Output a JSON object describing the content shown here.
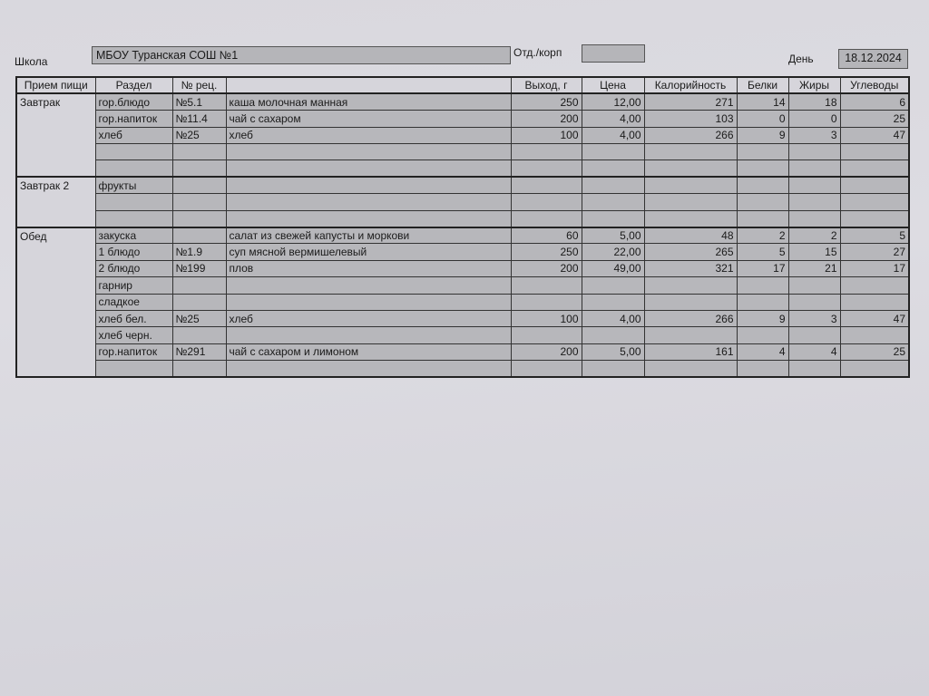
{
  "header": {
    "school_label": "Школа",
    "school_value": "МБОУ Туранская СОШ №1",
    "dept_label": "Отд./корп",
    "dept_value": "",
    "day_label": "День",
    "day_value": "18.12.2024"
  },
  "table": {
    "columns": [
      "Прием пищи",
      "Раздел",
      "№ рец.",
      "",
      "Выход, г",
      "Цена",
      "Калорийность",
      "Белки",
      "Жиры",
      "Углеводы"
    ],
    "meals": [
      {
        "name": "Завтрак",
        "rows": [
          [
            "гор.блюдо",
            "№5.1",
            "каша молочная манная",
            "250",
            "12,00",
            "271",
            "14",
            "18",
            "6"
          ],
          [
            "гор.напиток",
            "№11.4",
            "чай с сахаром",
            "200",
            "4,00",
            "103",
            "0",
            "0",
            "25"
          ],
          [
            "хлеб",
            "№25",
            "хлеб",
            "100",
            "4,00",
            "266",
            "9",
            "3",
            "47"
          ],
          [
            "",
            "",
            "",
            "",
            "",
            "",
            "",
            "",
            ""
          ],
          [
            "",
            "",
            "",
            "",
            "",
            "",
            "",
            "",
            ""
          ]
        ]
      },
      {
        "name": "Завтрак 2",
        "rows": [
          [
            "фрукты",
            "",
            "",
            "",
            "",
            "",
            "",
            "",
            ""
          ],
          [
            "",
            "",
            "",
            "",
            "",
            "",
            "",
            "",
            ""
          ],
          [
            "",
            "",
            "",
            "",
            "",
            "",
            "",
            "",
            ""
          ]
        ]
      },
      {
        "name": "Обед",
        "rows": [
          [
            "закуска",
            "",
            "салат из свежей капусты и моркови",
            "60",
            "5,00",
            "48",
            "2",
            "2",
            "5"
          ],
          [
            "1 блюдо",
            "№1.9",
            "суп мясной вермишелевый",
            "250",
            "22,00",
            "265",
            "5",
            "15",
            "27"
          ],
          [
            "2 блюдо",
            "№199",
            "плов",
            "200",
            "49,00",
            "321",
            "17",
            "21",
            "17"
          ],
          [
            "гарнир",
            "",
            "",
            "",
            "",
            "",
            "",
            "",
            ""
          ],
          [
            "сладкое",
            "",
            "",
            "",
            "",
            "",
            "",
            "",
            ""
          ],
          [
            "хлеб бел.",
            "№25",
            "хлеб",
            "100",
            "4,00",
            "266",
            "9",
            "3",
            "47"
          ],
          [
            "хлеб черн.",
            "",
            "",
            "",
            "",
            "",
            "",
            "",
            ""
          ],
          [
            "гор.напиток",
            "№291",
            "чай с сахаром и лимоном",
            "200",
            "5,00",
            "161",
            "4",
            "4",
            "25"
          ],
          [
            "",
            "",
            "",
            "",
            "",
            "",
            "",
            "",
            ""
          ]
        ]
      }
    ]
  }
}
